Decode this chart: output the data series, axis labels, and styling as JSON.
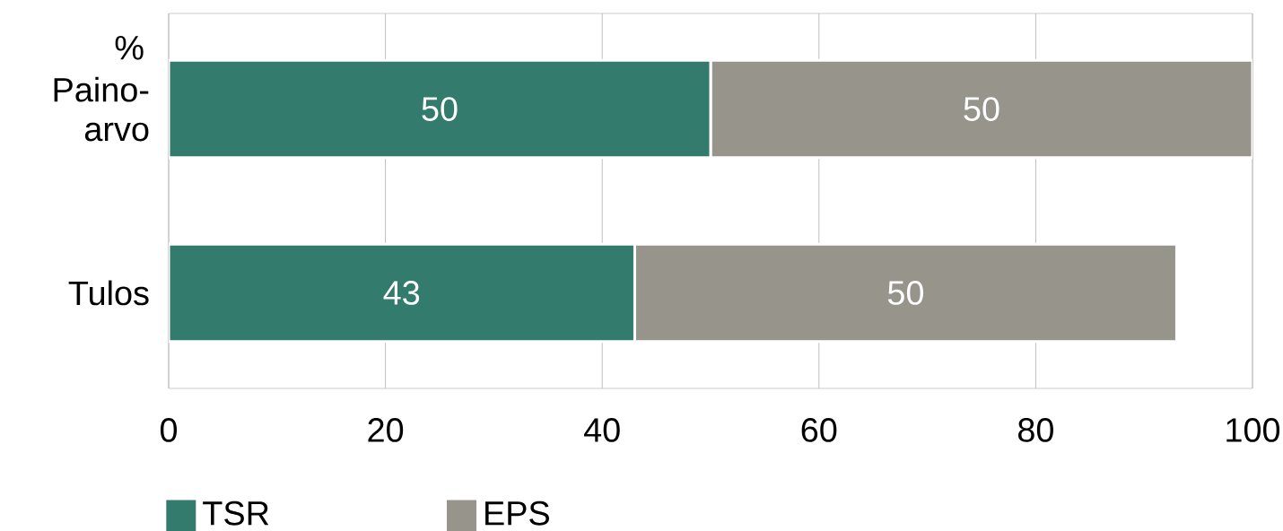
{
  "chart_data": {
    "type": "bar",
    "orientation": "horizontal",
    "stacked": true,
    "ylabel": "%",
    "categories": [
      "Paino-arvo",
      "Tulos"
    ],
    "series": [
      {
        "name": "TSR",
        "color": "#337b6d",
        "values": [
          50,
          43
        ]
      },
      {
        "name": "EPS",
        "color": "#97948c",
        "values": [
          50,
          50
        ]
      }
    ],
    "xlim": [
      0,
      100
    ],
    "xticks": [
      0,
      20,
      40,
      60,
      80,
      100
    ],
    "grid": "x",
    "legend": "bottom",
    "data_labels": true
  }
}
